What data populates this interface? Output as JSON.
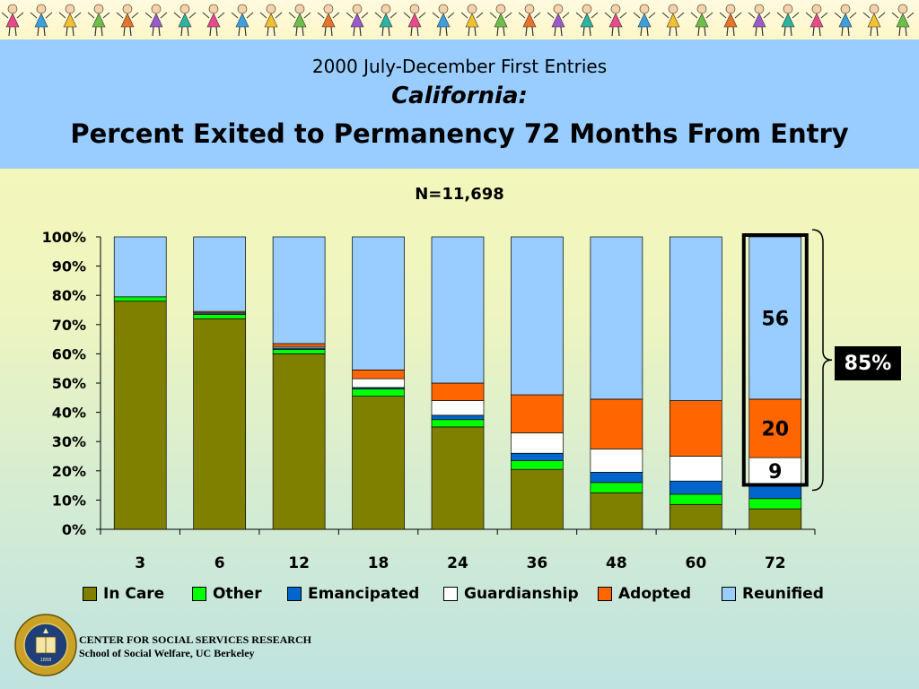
{
  "header": {
    "subtitle_1": "2000 July-December First Entries",
    "subtitle_2": "California:",
    "title": "Percent Exited to Permanency 72 Months From Entry"
  },
  "colors": {
    "header_band": "#99ccff",
    "in_care": "#808000",
    "other": "#00ff00",
    "emancipated": "#0066cc",
    "guardianship": "#ffffff",
    "adopted": "#ff6600",
    "reunified": "#99ccff"
  },
  "chart_data": {
    "type": "bar",
    "stacked": true,
    "title": "N=11,698",
    "xlabel": "",
    "ylabel": "",
    "ylim": [
      0,
      100
    ],
    "y_ticks": [
      "0%",
      "10%",
      "20%",
      "30%",
      "40%",
      "50%",
      "60%",
      "70%",
      "80%",
      "90%",
      "100%"
    ],
    "categories": [
      "3",
      "6",
      "12",
      "18",
      "24",
      "36",
      "48",
      "60",
      "72"
    ],
    "series": [
      {
        "name": "In Care",
        "color": "#808000",
        "values": [
          78,
          72,
          60,
          45.5,
          35,
          20.5,
          12.5,
          8.5,
          7
        ]
      },
      {
        "name": "Other",
        "color": "#00ff00",
        "values": [
          1.5,
          1.5,
          1.5,
          2.5,
          2.5,
          3,
          3.5,
          3.5,
          3.5
        ]
      },
      {
        "name": "Emancipated",
        "color": "#0066cc",
        "values": [
          0,
          0.5,
          0.5,
          0.5,
          1.5,
          2.5,
          3.5,
          4.5,
          5
        ]
      },
      {
        "name": "Guardianship",
        "color": "#ffffff",
        "values": [
          0,
          0,
          0.5,
          3,
          5,
          7,
          8,
          8.5,
          9
        ]
      },
      {
        "name": "Adopted",
        "color": "#ff6600",
        "values": [
          0,
          0.5,
          1,
          3,
          6,
          13,
          17,
          19,
          20
        ]
      },
      {
        "name": "Reunified",
        "color": "#99ccff",
        "values": [
          20.5,
          25.5,
          36.5,
          45.5,
          50,
          54,
          55.5,
          56,
          55.5
        ]
      }
    ],
    "data_labels": [
      {
        "category": "72",
        "series": "Reunified",
        "text": "56"
      },
      {
        "category": "72",
        "series": "Adopted",
        "text": "20"
      },
      {
        "category": "72",
        "series": "Guardianship",
        "text": "9"
      }
    ],
    "highlight_category": "72",
    "bracket_label": "85%",
    "legend_position": "bottom",
    "grid": false
  },
  "footer": {
    "org_name": "CENTER FOR SOCIAL SERVICES RESEARCH",
    "org_sub": "School of Social Welfare, UC Berkeley",
    "logo_text": "THE UNIVERSITY OF CALIFORNIA",
    "logo_year": "1868"
  }
}
